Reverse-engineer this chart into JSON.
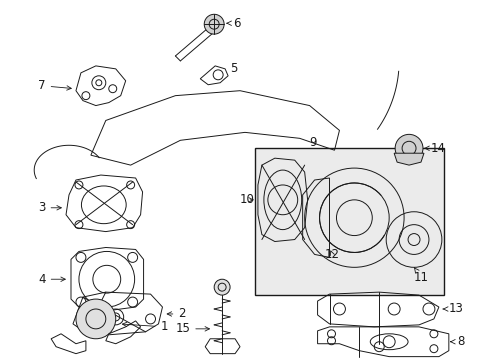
{
  "background_color": "#ffffff",
  "fig_width": 4.89,
  "fig_height": 3.6,
  "dpi": 100,
  "line_color": "#1a1a1a",
  "box_fill": "#e8e8e8",
  "lw": 0.7
}
